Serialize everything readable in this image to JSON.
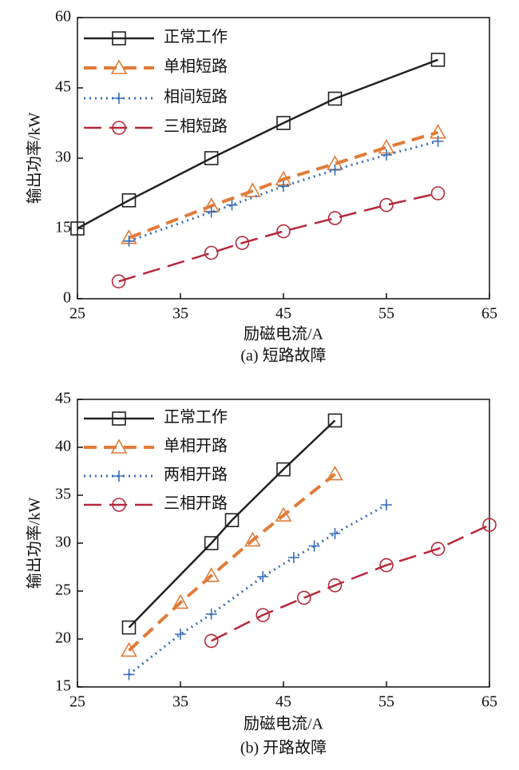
{
  "chart_data": [
    {
      "type": "line",
      "xlabel": "励磁电流/A",
      "ylabel": "输出功率/kW",
      "caption": "(a) 短路故障",
      "xlim": [
        25,
        65
      ],
      "xticks": [
        25,
        35,
        45,
        55,
        65
      ],
      "ylim": [
        0,
        60
      ],
      "yticks": [
        0,
        15,
        30,
        45,
        60
      ],
      "grid": false,
      "legend": "upper left",
      "series": [
        {
          "name": "正常工作",
          "color": "#222222",
          "linestyle": "solid",
          "marker": "square",
          "x": [
            25,
            30,
            38,
            45,
            50,
            60
          ],
          "values": [
            15,
            21,
            30,
            37.5,
            42.7,
            51
          ]
        },
        {
          "name": "单相短路",
          "color": "#e07b39",
          "linestyle": "dashed",
          "marker": "triangle",
          "x": [
            30,
            38,
            42,
            45,
            50,
            55,
            60
          ],
          "values": [
            13,
            19.8,
            23,
            25.5,
            28.8,
            32.3,
            35.5
          ]
        },
        {
          "name": "相间短路",
          "color": "#3a6fb5",
          "linestyle": "dotted",
          "marker": "plus",
          "x": [
            30,
            38,
            40,
            45,
            50,
            55,
            60
          ],
          "values": [
            12.3,
            18.5,
            20,
            24,
            27.5,
            30.7,
            33.6
          ]
        },
        {
          "name": "三相短路",
          "color": "#b5283a",
          "linestyle": "longdash",
          "marker": "circle",
          "x": [
            29,
            38,
            41,
            45,
            50,
            55,
            60
          ],
          "values": [
            3.7,
            9.8,
            11.9,
            14.4,
            17.2,
            20,
            22.5
          ]
        }
      ]
    },
    {
      "type": "line",
      "xlabel": "励磁电流/A",
      "ylabel": "输出功率/kW",
      "caption": "(b) 开路故障",
      "xlim": [
        25,
        65
      ],
      "xticks": [
        25,
        35,
        45,
        55,
        65
      ],
      "ylim": [
        15,
        45
      ],
      "yticks": [
        15,
        20,
        25,
        30,
        35,
        40,
        45
      ],
      "grid": false,
      "legend": "upper left",
      "series": [
        {
          "name": "正常工作",
          "color": "#222222",
          "linestyle": "solid",
          "marker": "square",
          "x": [
            30,
            38,
            40,
            45,
            50
          ],
          "values": [
            21.2,
            30,
            32.4,
            37.7,
            42.8
          ]
        },
        {
          "name": "单相开路",
          "color": "#e07b39",
          "linestyle": "dashed",
          "marker": "triangle",
          "x": [
            30,
            35,
            38,
            42,
            45,
            50
          ],
          "values": [
            18.8,
            23.8,
            26.6,
            30.3,
            32.9,
            37.2
          ]
        },
        {
          "name": "两相开路",
          "color": "#3a6fb5",
          "linestyle": "dotted",
          "marker": "plus",
          "x": [
            30,
            35,
            38,
            43,
            46,
            48,
            50,
            55
          ],
          "values": [
            16.3,
            20.5,
            22.6,
            26.5,
            28.5,
            29.7,
            31,
            34
          ]
        },
        {
          "name": "三相开路",
          "color": "#b5283a",
          "linestyle": "longdash",
          "marker": "circle",
          "x": [
            38,
            43,
            47,
            50,
            55,
            60,
            65
          ],
          "values": [
            19.8,
            22.5,
            24.3,
            25.6,
            27.7,
            29.4,
            31.9
          ]
        }
      ]
    }
  ]
}
